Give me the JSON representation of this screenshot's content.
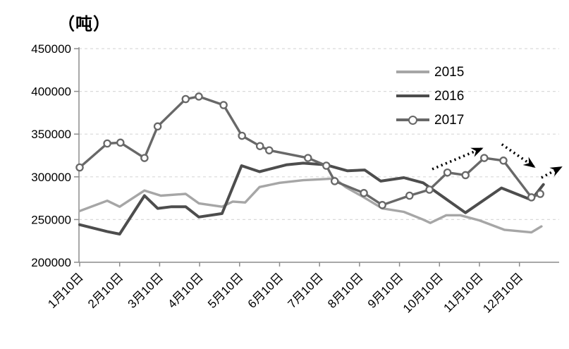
{
  "chart_data": {
    "type": "line",
    "title": "（吨）",
    "unit_label": "（吨）",
    "ylim": [
      200000,
      450000
    ],
    "ytick_step": 50000,
    "ytick_labels": [
      "200000",
      "250000",
      "300000",
      "350000",
      "400000",
      "450000"
    ],
    "x_categories": [
      "1月10日",
      "2月10日",
      "3月10日",
      "4月10日",
      "5月10日",
      "6月10日",
      "7月10日",
      "8月10日",
      "9月10日",
      "10月10日",
      "11月10日",
      "12月10日"
    ],
    "x_unit": "month (10th of each month, fractional = intra-month date)",
    "grid": "horizontal-dashed",
    "legend_position": "inside-upper-right",
    "colors": {
      "grid": "#d9d9d9",
      "axis": "#8c8c8c",
      "text": "#000000",
      "arrow": "#000000",
      "series_2015": "#a6a6a6",
      "series_2016": "#4d4d4d",
      "series_2017": "#686868"
    },
    "series": [
      {
        "name": "2015",
        "color": "#a6a6a6",
        "marker": "none",
        "width": 3.4,
        "points": [
          [
            1.0,
            260000
          ],
          [
            1.69,
            272000
          ],
          [
            2.0,
            265000
          ],
          [
            2.62,
            284000
          ],
          [
            3.03,
            278000
          ],
          [
            3.65,
            280000
          ],
          [
            3.98,
            269000
          ],
          [
            4.56,
            265000
          ],
          [
            4.83,
            271000
          ],
          [
            5.14,
            270000
          ],
          [
            5.5,
            288000
          ],
          [
            6.0,
            293000
          ],
          [
            6.59,
            296000
          ],
          [
            6.98,
            297000
          ],
          [
            7.38,
            298000
          ],
          [
            7.65,
            288000
          ],
          [
            8.11,
            276000
          ],
          [
            8.57,
            263000
          ],
          [
            9.11,
            259000
          ],
          [
            9.59,
            250000
          ],
          [
            9.77,
            246000
          ],
          [
            10.17,
            255000
          ],
          [
            10.52,
            255000
          ],
          [
            11.0,
            249000
          ],
          [
            11.62,
            238000
          ],
          [
            12.3,
            235000
          ],
          [
            12.55,
            242000
          ]
        ]
      },
      {
        "name": "2016",
        "color": "#4d4d4d",
        "marker": "none",
        "width": 4,
        "points": [
          [
            1.0,
            244000
          ],
          [
            1.69,
            236000
          ],
          [
            2.0,
            233000
          ],
          [
            2.62,
            278000
          ],
          [
            2.95,
            263000
          ],
          [
            3.3,
            265000
          ],
          [
            3.65,
            265000
          ],
          [
            3.98,
            253000
          ],
          [
            4.56,
            257000
          ],
          [
            5.05,
            313000
          ],
          [
            5.5,
            306000
          ],
          [
            6.17,
            314000
          ],
          [
            6.59,
            316000
          ],
          [
            7.16,
            314000
          ],
          [
            7.7,
            307000
          ],
          [
            8.13,
            308000
          ],
          [
            8.53,
            295000
          ],
          [
            9.11,
            299000
          ],
          [
            9.59,
            293000
          ],
          [
            10.65,
            258000
          ],
          [
            11.55,
            287000
          ],
          [
            12.3,
            273000
          ],
          [
            12.6,
            291000
          ]
        ]
      },
      {
        "name": "2017",
        "color": "#686868",
        "marker": "circle-open",
        "width": 3.4,
        "points": [
          [
            1.0,
            311000
          ],
          [
            1.69,
            339000
          ],
          [
            2.02,
            340000
          ],
          [
            2.62,
            322000
          ],
          [
            2.95,
            359000
          ],
          [
            3.65,
            391000
          ],
          [
            3.98,
            394000
          ],
          [
            4.6,
            384000
          ],
          [
            5.06,
            348000
          ],
          [
            5.51,
            336000
          ],
          [
            5.74,
            331000
          ],
          [
            6.71,
            322000
          ],
          [
            7.17,
            313000
          ],
          [
            7.38,
            295000
          ],
          [
            8.11,
            281000
          ],
          [
            8.57,
            267000
          ],
          [
            9.25,
            278000
          ],
          [
            9.75,
            285000
          ],
          [
            10.2,
            305000
          ],
          [
            10.65,
            302000
          ],
          [
            11.12,
            322000
          ],
          [
            11.6,
            319000
          ],
          [
            12.3,
            276000
          ],
          [
            12.52,
            280000
          ]
        ]
      }
    ],
    "annotations": {
      "arrows": [
        {
          "style": "dotted",
          "direction": "up-right",
          "from_month": 9.82,
          "from_value": 309000,
          "to_month": 11.05,
          "to_value": 333000
        },
        {
          "style": "dotted",
          "direction": "down-right",
          "from_month": 11.56,
          "from_value": 338000,
          "to_month": 12.36,
          "to_value": 312000
        },
        {
          "style": "dotted",
          "direction": "up-right",
          "from_month": 12.55,
          "from_value": 299000,
          "to_month": 13.03,
          "to_value": 311000
        }
      ]
    }
  }
}
